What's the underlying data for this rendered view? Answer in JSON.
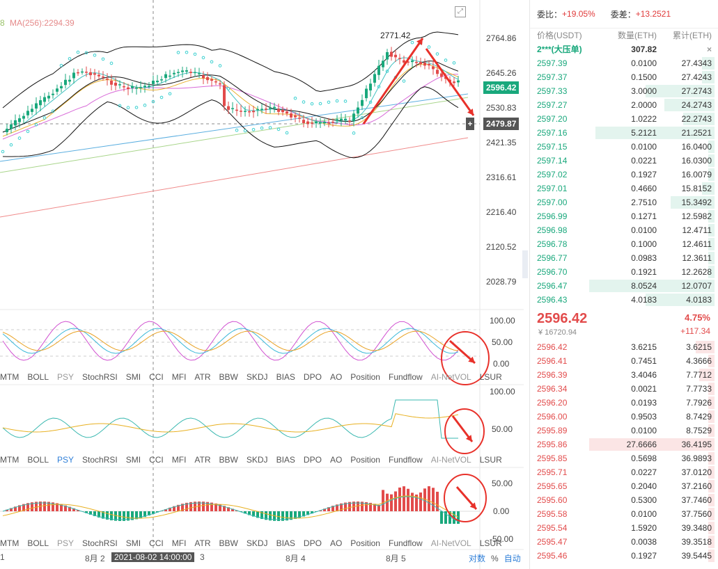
{
  "chart": {
    "ma_label_left": "8",
    "ma256_label": "MA(256):2294.39",
    "annotation_high": "2771.42",
    "price_axis": [
      "2764.86",
      "2645.26",
      "2530.83",
      "2421.35",
      "2316.61",
      "2216.40",
      "2120.52",
      "2028.79"
    ],
    "current_price_tag": "2596.42",
    "crosshair_price_tag": "2479.87",
    "crosshair_plus": "+",
    "osc1_axis": [
      "100.00",
      "50.00",
      "0.00"
    ],
    "osc2_axis": [
      "100.00",
      "50.00"
    ],
    "osc3_axis": [
      "50.00",
      "0.00",
      "-50.00"
    ],
    "expand_icon": "⤢",
    "colors": {
      "up": "#19a87c",
      "down": "#e24b4b",
      "annotation": "#e8312a"
    }
  },
  "indicator_tabs": [
    "MTM",
    "BOLL",
    "PSY",
    "StochRSI",
    "SMI",
    "CCI",
    "MFI",
    "ATR",
    "BBW",
    "SKDJ",
    "BIAS",
    "DPO",
    "AO",
    "Position",
    "Fundflow",
    "AI-NetVOL",
    "LSUR"
  ],
  "x_axis": {
    "labels": [
      "1",
      "8月 2",
      "3",
      "8月 4",
      "8月 5"
    ],
    "crosshair_date": "2021-08-02 14:00:00"
  },
  "bottom_controls": [
    "对数",
    "%",
    "自动"
  ],
  "orderbook": {
    "bid_ratio_label": "委比：",
    "bid_ratio_value": "+19.05%",
    "diff_label": "委差：",
    "diff_value": "+13.2521",
    "headers": [
      "价格(USDT)",
      "数量(ETH)",
      "累计(ETH)"
    ],
    "big_order": {
      "price": "2***(大压单)",
      "qty": "307.82",
      "close": "×"
    },
    "bids": [
      [
        "2597.39",
        "0.0100",
        "27.4343",
        0.1
      ],
      [
        "2597.37",
        "0.1500",
        "27.4243",
        0.1
      ],
      [
        "2597.33",
        "3.0000",
        "27.2743",
        0.55
      ],
      [
        "2597.27",
        "2.0000",
        "24.2743",
        0.4
      ],
      [
        "2597.20",
        "1.0222",
        "22.2743",
        0.25
      ],
      [
        "2597.16",
        "5.2121",
        "21.2521",
        0.95
      ],
      [
        "2597.15",
        "0.0100",
        "16.0400",
        0.05
      ],
      [
        "2597.14",
        "0.0221",
        "16.0300",
        0.05
      ],
      [
        "2597.02",
        "0.1927",
        "16.0079",
        0.05
      ],
      [
        "2597.01",
        "0.4660",
        "15.8152",
        0.1
      ],
      [
        "2597.00",
        "2.7510",
        "15.3492",
        0.35
      ],
      [
        "2596.99",
        "0.1271",
        "12.5982",
        0.05
      ],
      [
        "2596.98",
        "0.0100",
        "12.4711",
        0.05
      ],
      [
        "2596.78",
        "0.1000",
        "12.4611",
        0.05
      ],
      [
        "2596.77",
        "0.0983",
        "12.3611",
        0.05
      ],
      [
        "2596.70",
        "0.1921",
        "12.2628",
        0.05
      ],
      [
        "2596.47",
        "8.0524",
        "12.0707",
        1.0
      ],
      [
        "2596.43",
        "4.0183",
        "4.0183",
        0.55
      ]
    ],
    "last_price": "2596.42",
    "last_cny": "¥ 16720.94",
    "change_pct": "4.75%",
    "change_abs": "+117.34",
    "asks": [
      [
        "2596.42",
        "3.6215",
        "3.6215",
        0.15
      ],
      [
        "2596.41",
        "0.7451",
        "4.3666",
        0.05
      ],
      [
        "2596.39",
        "3.4046",
        "7.7712",
        0.12
      ],
      [
        "2596.34",
        "0.0021",
        "7.7733",
        0.05
      ],
      [
        "2596.20",
        "0.0193",
        "7.7926",
        0.05
      ],
      [
        "2596.00",
        "0.9503",
        "8.7429",
        0.05
      ],
      [
        "2595.89",
        "0.0100",
        "8.7529",
        0.05
      ],
      [
        "2595.86",
        "27.6666",
        "36.4195",
        1.0
      ],
      [
        "2595.85",
        "0.5698",
        "36.9893",
        0.05
      ],
      [
        "2595.71",
        "0.0227",
        "37.0120",
        0.05
      ],
      [
        "2595.65",
        "0.2040",
        "37.2160",
        0.05
      ],
      [
        "2595.60",
        "0.5300",
        "37.7460",
        0.05
      ],
      [
        "2595.58",
        "0.0100",
        "37.7560",
        0.05
      ],
      [
        "2595.54",
        "1.5920",
        "39.3480",
        0.05
      ],
      [
        "2595.47",
        "0.0038",
        "39.3518",
        0.05
      ],
      [
        "2595.46",
        "0.1927",
        "39.5445",
        0.05
      ]
    ]
  }
}
